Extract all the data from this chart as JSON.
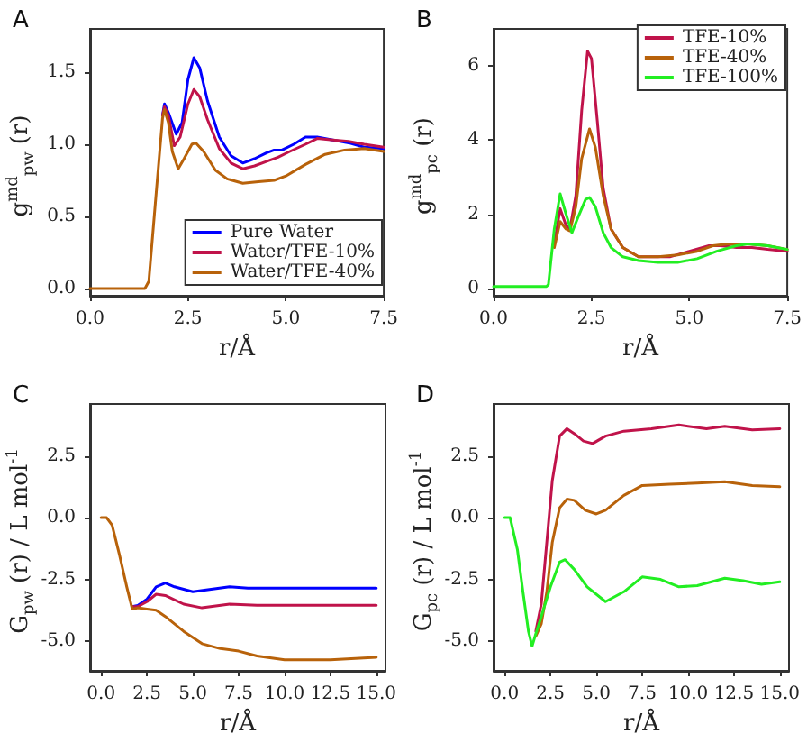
{
  "chart_data": [
    {
      "type": "line",
      "title": "A",
      "xlabel": "r/Å",
      "ylabel": "g$^{md}$$_{pw}$ (r)",
      "xlim": [
        0,
        7.5
      ],
      "ylim": [
        -0.05,
        1.8
      ],
      "xticks": [
        {
          "value": 0,
          "label": "0.0"
        },
        2.5,
        {
          "value": 5,
          "label": "5.0"
        },
        7.5
      ],
      "yticks": [
        {
          "value": 0,
          "label": "0.0"
        },
        0.5,
        {
          "value": 1,
          "label": "1.0"
        },
        1.5
      ],
      "legend": "bottom right",
      "marker": "none",
      "line_style": "solid",
      "grid": false,
      "series": [
        {
          "name": "Pure Water",
          "color": "#0000ff",
          "x": [
            1.85,
            1.9,
            2.0,
            2.2,
            2.35,
            2.5,
            2.65,
            2.8,
            3.0,
            3.3,
            3.6,
            3.9,
            4.2,
            4.5,
            4.7,
            4.9,
            5.2,
            5.5,
            5.8,
            6.2,
            6.6,
            7.0,
            7.5
          ],
          "values": [
            1.2,
            1.28,
            1.22,
            1.07,
            1.15,
            1.45,
            1.6,
            1.53,
            1.3,
            1.05,
            0.92,
            0.87,
            0.9,
            0.94,
            0.96,
            0.96,
            1.0,
            1.05,
            1.05,
            1.03,
            1.01,
            0.98,
            0.97
          ]
        },
        {
          "name": "Water/TFE-10%",
          "color": "#c0134a",
          "x": [
            1.85,
            1.9,
            2.0,
            2.15,
            2.3,
            2.5,
            2.65,
            2.8,
            3.0,
            3.3,
            3.6,
            3.9,
            4.2,
            4.5,
            4.8,
            5.1,
            5.5,
            5.8,
            6.2,
            6.6,
            7.0,
            7.5
          ],
          "values": [
            1.2,
            1.26,
            1.2,
            0.99,
            1.05,
            1.28,
            1.38,
            1.33,
            1.17,
            0.97,
            0.87,
            0.83,
            0.85,
            0.88,
            0.91,
            0.95,
            1.0,
            1.04,
            1.03,
            1.02,
            1.0,
            0.98
          ]
        },
        {
          "name": "Water/TFE-40%",
          "color": "#b8620a",
          "x": [
            0,
            1.4,
            1.5,
            1.7,
            1.85,
            1.9,
            2.0,
            2.1,
            2.25,
            2.4,
            2.6,
            2.7,
            2.9,
            3.2,
            3.5,
            3.9,
            4.3,
            4.7,
            5.0,
            5.5,
            6.0,
            6.5,
            7.0,
            7.5
          ],
          "values": [
            0,
            0,
            0.05,
            0.7,
            1.18,
            1.24,
            1.15,
            0.95,
            0.83,
            0.9,
            1.0,
            1.01,
            0.95,
            0.82,
            0.76,
            0.73,
            0.74,
            0.75,
            0.78,
            0.86,
            0.93,
            0.96,
            0.97,
            0.95
          ]
        }
      ]
    },
    {
      "type": "line",
      "title": "B",
      "xlabel": "r/Å",
      "ylabel": "g$^{md}$$_{pc}$ (r)",
      "xlim": [
        0,
        7.5
      ],
      "ylim": [
        -0.2,
        7
      ],
      "xticks": [
        {
          "value": 0,
          "label": "0.0"
        },
        2.5,
        {
          "value": 5,
          "label": "5.0"
        },
        7.5
      ],
      "yticks": [
        0,
        2,
        4,
        6
      ],
      "legend": "top right",
      "marker": "none",
      "line_style": "solid",
      "grid": false,
      "series": [
        {
          "name": "TFE-10%",
          "color": "#c0134a",
          "x": [
            1.55,
            1.7,
            1.85,
            1.95,
            2.1,
            2.25,
            2.4,
            2.5,
            2.65,
            2.8,
            3.0,
            3.3,
            3.7,
            4.0,
            4.5,
            5.0,
            5.5,
            5.8,
            6.2,
            6.6,
            7.0,
            7.5
          ],
          "values": [
            1.2,
            2.15,
            1.7,
            1.6,
            2.5,
            4.8,
            6.4,
            6.2,
            4.5,
            2.7,
            1.6,
            1.1,
            0.85,
            0.85,
            0.85,
            1.0,
            1.15,
            1.15,
            1.1,
            1.1,
            1.05,
            1.0
          ]
        },
        {
          "name": "TFE-40%",
          "color": "#b8620a",
          "x": [
            1.55,
            1.7,
            1.85,
            1.95,
            2.1,
            2.25,
            2.45,
            2.6,
            2.8,
            3.0,
            3.3,
            3.7,
            4.2,
            4.7,
            5.2,
            5.6,
            6.0,
            6.5,
            7.0,
            7.5
          ],
          "values": [
            1.1,
            1.8,
            1.6,
            1.55,
            2.2,
            3.5,
            4.3,
            3.8,
            2.5,
            1.6,
            1.1,
            0.85,
            0.85,
            0.9,
            1.0,
            1.15,
            1.2,
            1.2,
            1.15,
            1.05
          ]
        },
        {
          "name": "TFE-100%",
          "color": "#22ee22",
          "x": [
            0,
            1.35,
            1.4,
            1.55,
            1.7,
            1.85,
            2.0,
            2.15,
            2.35,
            2.45,
            2.6,
            2.8,
            3.0,
            3.3,
            3.7,
            4.2,
            4.7,
            5.2,
            5.7,
            6.2,
            6.5,
            7.0,
            7.5
          ],
          "values": [
            0.05,
            0.05,
            0.1,
            1.6,
            2.55,
            2.0,
            1.5,
            1.9,
            2.4,
            2.45,
            2.2,
            1.5,
            1.1,
            0.85,
            0.75,
            0.7,
            0.7,
            0.8,
            1.0,
            1.15,
            1.2,
            1.15,
            1.05
          ]
        }
      ]
    },
    {
      "type": "line",
      "title": "C",
      "xlabel": "r/Å",
      "ylabel": "G$_{pw}$ (r) / L mol$^{-1}$",
      "xlim": [
        -0.6,
        15.5
      ],
      "ylim": [
        -6.2,
        4.6
      ],
      "xticks": [
        {
          "value": 0,
          "label": "0.0"
        },
        2.5,
        {
          "value": 5,
          "label": "5.0"
        },
        7.5,
        {
          "value": 10,
          "label": "10.0"
        },
        12.5,
        {
          "value": 15,
          "label": "15.0"
        }
      ],
      "yticks": [
        {
          "value": -5,
          "label": "-5.0"
        },
        -2.5,
        {
          "value": 0,
          "label": "0.0"
        },
        2.5
      ],
      "marker": "none",
      "line_style": "solid",
      "grid": false,
      "series": [
        {
          "color": "#0000ff",
          "x": [
            1.7,
            2.0,
            2.5,
            3.0,
            3.5,
            4.0,
            5.0,
            6.0,
            7.0,
            8.0,
            10,
            12.5,
            15
          ],
          "values": [
            -3.6,
            -3.55,
            -3.3,
            -2.8,
            -2.65,
            -2.8,
            -3.0,
            -2.9,
            -2.8,
            -2.85,
            -2.85,
            -2.85,
            -2.85
          ]
        },
        {
          "color": "#c0134a",
          "x": [
            1.7,
            2.0,
            2.5,
            3.0,
            3.5,
            4.5,
            5.5,
            7.0,
            8.5,
            10,
            12.5,
            15
          ],
          "values": [
            -3.6,
            -3.6,
            -3.4,
            -3.1,
            -3.15,
            -3.5,
            -3.65,
            -3.5,
            -3.55,
            -3.55,
            -3.55,
            -3.55
          ]
        },
        {
          "color": "#b8620a",
          "x": [
            0,
            0.3,
            0.6,
            1.0,
            1.4,
            1.7,
            2.0,
            2.5,
            3.0,
            3.5,
            4.5,
            5.5,
            6.5,
            7.5,
            8.5,
            10,
            12.5,
            15
          ],
          "values": [
            0,
            0,
            -0.3,
            -1.5,
            -2.8,
            -3.7,
            -3.65,
            -3.7,
            -3.75,
            -4.0,
            -4.6,
            -5.1,
            -5.3,
            -5.4,
            -5.6,
            -5.75,
            -5.75,
            -5.65
          ]
        }
      ]
    },
    {
      "type": "line",
      "title": "D",
      "xlabel": "r/Å",
      "ylabel": "G$_{pc}$ (r) / L mol$^{-1}$",
      "xlim": [
        -0.6,
        15.5
      ],
      "ylim": [
        -6.2,
        4.6
      ],
      "xticks": [
        {
          "value": 0,
          "label": "0.0"
        },
        2.5,
        {
          "value": 5,
          "label": "5.0"
        },
        7.5,
        {
          "value": 10,
          "label": "10.0"
        },
        12.5,
        {
          "value": 15,
          "label": "15.0"
        }
      ],
      "yticks": [
        {
          "value": -5,
          "label": "-5.0"
        },
        -2.5,
        {
          "value": 0,
          "label": "0.0"
        },
        2.5
      ],
      "marker": "none",
      "line_style": "solid",
      "grid": false,
      "series": [
        {
          "color": "#c0134a",
          "x": [
            1.7,
            2.0,
            2.3,
            2.6,
            3.0,
            3.4,
            3.8,
            4.3,
            4.8,
            5.5,
            6.5,
            8,
            9.5,
            11,
            12,
            13.5,
            15
          ],
          "values": [
            -4.6,
            -3.5,
            -1,
            1.5,
            3.3,
            3.6,
            3.4,
            3.1,
            3.0,
            3.3,
            3.5,
            3.6,
            3.75,
            3.6,
            3.7,
            3.55,
            3.6
          ]
        },
        {
          "color": "#b8620a",
          "x": [
            1.7,
            2.0,
            2.3,
            2.6,
            3.0,
            3.4,
            3.8,
            4.4,
            5.0,
            5.5,
            6.5,
            7.5,
            9,
            10.5,
            12,
            13.5,
            15
          ],
          "values": [
            -4.8,
            -4.3,
            -3.0,
            -1.0,
            0.4,
            0.75,
            0.7,
            0.3,
            0.15,
            0.3,
            0.9,
            1.3,
            1.35,
            1.4,
            1.45,
            1.3,
            1.25
          ]
        },
        {
          "color": "#22ee22",
          "x": [
            0,
            0.3,
            0.7,
            1.0,
            1.3,
            1.5,
            1.7,
            2.0,
            2.5,
            3.0,
            3.3,
            3.8,
            4.5,
            5.5,
            6.5,
            7.5,
            8.5,
            9.5,
            10.5,
            12,
            13,
            14,
            15
          ],
          "values": [
            0,
            0,
            -1.3,
            -3.0,
            -4.6,
            -5.2,
            -4.7,
            -4.0,
            -2.8,
            -1.8,
            -1.7,
            -2.1,
            -2.8,
            -3.4,
            -3.0,
            -2.4,
            -2.5,
            -2.8,
            -2.75,
            -2.45,
            -2.55,
            -2.7,
            -2.6
          ]
        }
      ]
    }
  ]
}
